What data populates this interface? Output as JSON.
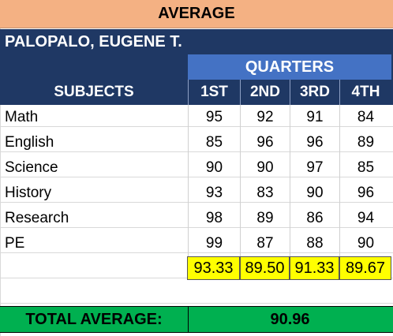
{
  "sheet": {
    "title": "AVERAGE",
    "student_name": "PALOPALO, EUGENE T.",
    "quarters_label": "QUARTERS",
    "headers": {
      "subjects": "SUBJECTS",
      "q1": "1ST",
      "q2": "2ND",
      "q3": "3RD",
      "q4": "4TH"
    },
    "rows": [
      {
        "subject": "Math",
        "q1": "95",
        "q2": "92",
        "q3": "91",
        "q4": "84"
      },
      {
        "subject": "English",
        "q1": "85",
        "q2": "96",
        "q3": "96",
        "q4": "89"
      },
      {
        "subject": "Science",
        "q1": "90",
        "q2": "90",
        "q3": "97",
        "q4": "85"
      },
      {
        "subject": "History",
        "q1": "93",
        "q2": "83",
        "q3": "90",
        "q4": "96"
      },
      {
        "subject": "Research",
        "q1": "98",
        "q2": "89",
        "q3": "86",
        "q4": "94"
      },
      {
        "subject": "PE",
        "q1": "99",
        "q2": "87",
        "q3": "88",
        "q4": "90"
      }
    ],
    "averages": {
      "q1": "93.33",
      "q2": "89.50",
      "q3": "91.33",
      "q4": "89.67"
    },
    "total_label": "TOTAL AVERAGE:",
    "total_value": "90.96"
  },
  "colors": {
    "title_bg": "#f4b183",
    "header_bg": "#1f3864",
    "quarters_bg": "#4472c4",
    "average_bg": "#ffff00",
    "total_bg": "#00b050"
  }
}
